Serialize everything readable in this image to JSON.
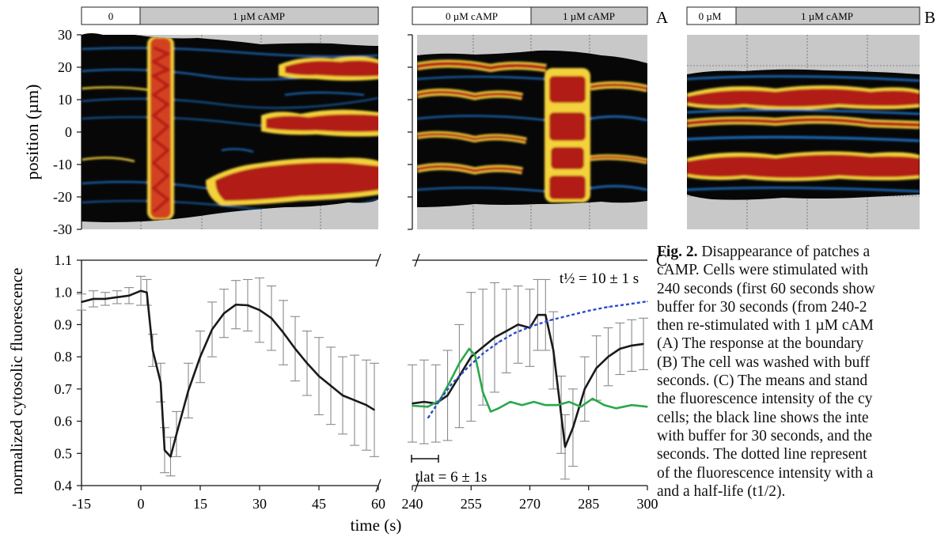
{
  "panels": {
    "A": {
      "letter": "A",
      "left_bar": [
        "0",
        "1 µM cAMP"
      ],
      "right_bar": [
        "0 µM cAMP",
        "1 µM cAMP"
      ]
    },
    "B": {
      "letter": "B",
      "bar": [
        "0 µM",
        "1 µM cAMP"
      ]
    },
    "C": {
      "letter": "C"
    }
  },
  "kymograph_axis": {
    "ylabel": "position (µm)",
    "ticks": [
      "30",
      "20",
      "10",
      "0",
      "-10",
      "-20",
      "-30"
    ]
  },
  "annotations": {
    "t_half_label": "t½ = 10 ± 1 s",
    "t_lat_label": "tlat = 6 ± 1s"
  },
  "caption": {
    "fig_label": "Fig. 2.",
    "lines": [
      " Disappearance of patches a",
      "cAMP. Cells were stimulated with",
      "240 seconds (first 60 seconds show",
      "buffer for 30 seconds (from 240-2",
      "then re-stimulated with 1 µM cAM",
      "(A) The response at the boundary",
      "(B) The cell was washed with buff",
      "seconds. (C) The means and stand",
      "the fluorescence intensity of the cy",
      "cells; the black line shows the inte",
      "with buffer for 30 seconds, and the",
      "seconds. The dotted line represent",
      "of the fluorescence intensity with a",
      "and a half-life (t1/2)."
    ]
  },
  "chart_data": {
    "type": "line",
    "xlabel": "time (s)",
    "ylabel": "normalized cytosolic fluorescence",
    "ylim": [
      0.4,
      1.1
    ],
    "yticks": [
      "0.4",
      "0.5",
      "0.6",
      "0.7",
      "0.8",
      "0.9",
      "1.0",
      "1.1"
    ],
    "broken_x_axis": true,
    "segments": [
      {
        "xlim": [
          -15,
          60
        ],
        "xticks": [
          "-15",
          "0",
          "15",
          "30",
          "45",
          "60"
        ]
      },
      {
        "xlim": [
          240,
          300
        ],
        "xticks": [
          "240",
          "255",
          "270",
          "285",
          "300"
        ]
      }
    ],
    "series": [
      {
        "color": "#1a1a1a",
        "segment": 0,
        "x": [
          -15,
          -12,
          -9,
          -6,
          -3,
          0,
          1.5,
          3,
          5,
          6,
          7.5,
          9,
          12,
          15,
          18,
          21,
          24,
          27,
          30,
          33,
          36,
          39,
          42,
          45,
          48,
          51,
          54,
          57,
          59
        ],
        "y": [
          0.97,
          0.98,
          0.98,
          0.985,
          0.99,
          1.005,
          1.0,
          0.82,
          0.72,
          0.51,
          0.49,
          0.56,
          0.695,
          0.8,
          0.885,
          0.935,
          0.962,
          0.96,
          0.945,
          0.92,
          0.875,
          0.825,
          0.78,
          0.74,
          0.71,
          0.68,
          0.665,
          0.65,
          0.635
        ],
        "error": [
          0.025,
          0.025,
          0.02,
          0.02,
          0.025,
          0.045,
          0.04,
          0.05,
          0.06,
          0.07,
          0.06,
          0.07,
          0.085,
          0.08,
          0.085,
          0.075,
          0.075,
          0.08,
          0.1,
          0.1,
          0.1,
          0.1,
          0.1,
          0.12,
          0.12,
          0.12,
          0.14,
          0.14,
          0.145
        ]
      },
      {
        "color": "#1a1a1a",
        "segment": 1,
        "x": [
          240,
          243,
          246,
          249,
          252,
          255,
          258,
          261,
          264,
          267,
          270,
          272,
          274,
          276,
          278,
          279,
          281,
          284,
          287,
          290,
          293,
          296,
          299
        ],
        "y": [
          0.655,
          0.66,
          0.655,
          0.68,
          0.74,
          0.8,
          0.83,
          0.86,
          0.88,
          0.9,
          0.89,
          0.93,
          0.93,
          0.82,
          0.62,
          0.52,
          0.58,
          0.7,
          0.765,
          0.8,
          0.825,
          0.835,
          0.84
        ],
        "error": [
          0.12,
          0.13,
          0.12,
          0.14,
          0.16,
          0.2,
          0.18,
          0.17,
          0.13,
          0.12,
          0.12,
          0.11,
          0.11,
          0.12,
          0.12,
          0.1,
          0.12,
          0.1,
          0.1,
          0.09,
          0.08,
          0.08,
          0.08
        ]
      },
      {
        "color": "#2aa84a",
        "segment": 1,
        "x": [
          240,
          244,
          247,
          249.5,
          252,
          254.5,
          256,
          258,
          260,
          262,
          265,
          268,
          271,
          274,
          277,
          280,
          283,
          286,
          289,
          292,
          296,
          300
        ],
        "y": [
          0.648,
          0.645,
          0.665,
          0.72,
          0.78,
          0.825,
          0.805,
          0.69,
          0.63,
          0.64,
          0.66,
          0.65,
          0.66,
          0.65,
          0.65,
          0.66,
          0.645,
          0.67,
          0.65,
          0.64,
          0.65,
          0.645
        ]
      },
      {
        "color": "#2b4bc8",
        "segment": 1,
        "dashed": true,
        "x": [
          244,
          247,
          250,
          254,
          258,
          262,
          266,
          270,
          275,
          280,
          285,
          290,
          295,
          300
        ],
        "y": [
          0.61,
          0.665,
          0.715,
          0.765,
          0.81,
          0.845,
          0.873,
          0.893,
          0.913,
          0.928,
          0.943,
          0.955,
          0.963,
          0.972
        ]
      }
    ]
  }
}
